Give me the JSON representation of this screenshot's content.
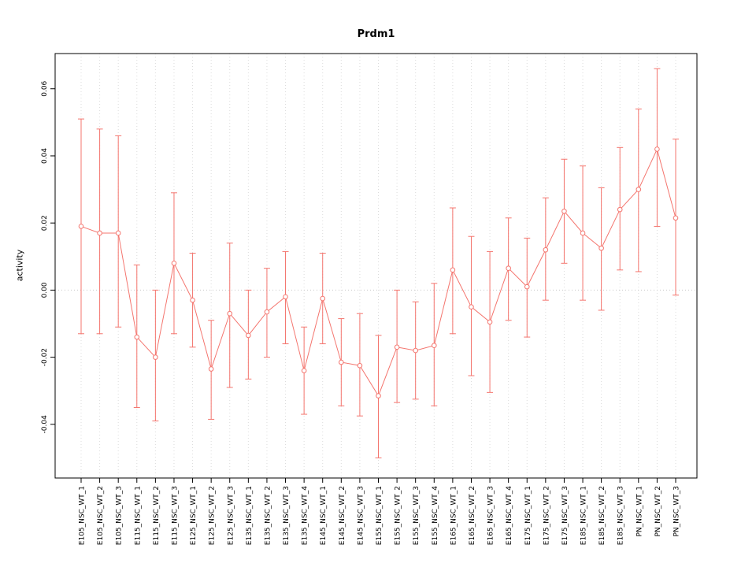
{
  "chart_data": {
    "type": "scatter",
    "title": "Prdm1",
    "ylabel": "activity",
    "xlabel": "",
    "point_style": "open-circle-with-error-bars-connected-by-line",
    "color": "#f4756e",
    "grid_color": "#dcdcdc",
    "zero_line_color": "#c8c8c8",
    "grid": "dotted vertical gridline at each category, dotted horizontal line at y=0",
    "legend": "none",
    "ylim": [
      -0.056,
      0.0705
    ],
    "yticks": [
      -0.04,
      -0.02,
      0,
      0.02,
      0.04,
      0.06
    ],
    "ytick_labels": [
      "-0.04",
      "-0.02",
      "0.00",
      "0.02",
      "0.04",
      "0.06"
    ],
    "categories": [
      "E105_NSC_WT_1",
      "E105_NSC_WT_2",
      "E105_NSC_WT_3",
      "E115_NSC_WT_1",
      "E115_NSC_WT_2",
      "E115_NSC_WT_3",
      "E125_NSC_WT_1",
      "E125_NSC_WT_2",
      "E125_NSC_WT_3",
      "E135_NSC_WT_1",
      "E135_NSC_WT_2",
      "E135_NSC_WT_3",
      "E135_NSC_WT_4",
      "E145_NSC_WT_1",
      "E145_NSC_WT_2",
      "E145_NSC_WT_3",
      "E155_NSC_WT_1",
      "E155_NSC_WT_2",
      "E155_NSC_WT_3",
      "E155_NSC_WT_4",
      "E165_NSC_WT_1",
      "E165_NSC_WT_2",
      "E165_NSC_WT_3",
      "E165_NSC_WT_4",
      "E175_NSC_WT_1",
      "E175_NSC_WT_2",
      "E175_NSC_WT_3",
      "E185_NSC_WT_1",
      "E185_NSC_WT_2",
      "E185_NSC_WT_3",
      "PN_NSC_WT_1",
      "PN_NSC_WT_2",
      "PN_NSC_WT_3"
    ],
    "series": [
      {
        "name": "activity",
        "values": [
          0.019,
          0.017,
          0.017,
          -0.014,
          -0.02,
          0.008,
          -0.003,
          -0.0235,
          -0.007,
          -0.0135,
          -0.0065,
          -0.002,
          -0.024,
          -0.0025,
          -0.0215,
          -0.0225,
          -0.0315,
          -0.017,
          -0.018,
          -0.0165,
          0.006,
          -0.005,
          -0.0095,
          0.0065,
          0.001,
          0.012,
          0.0235,
          0.017,
          0.0125,
          0.024,
          0.03,
          0.042,
          0.0215
        ],
        "lower": [
          -0.013,
          -0.013,
          -0.011,
          -0.035,
          -0.039,
          -0.013,
          -0.017,
          -0.0385,
          -0.029,
          -0.0265,
          -0.02,
          -0.016,
          -0.037,
          -0.016,
          -0.0345,
          -0.0375,
          -0.05,
          -0.0335,
          -0.0325,
          -0.0345,
          -0.013,
          -0.0255,
          -0.0305,
          -0.009,
          -0.014,
          -0.003,
          0.008,
          -0.003,
          -0.006,
          0.006,
          0.0055,
          0.019,
          -0.0015
        ],
        "upper": [
          0.051,
          0.048,
          0.046,
          0.0075,
          0.0,
          0.029,
          0.011,
          -0.009,
          0.014,
          0.0,
          0.0065,
          0.0115,
          -0.011,
          0.011,
          -0.0085,
          -0.007,
          -0.0135,
          0.0,
          -0.0035,
          0.002,
          0.0245,
          0.016,
          0.0115,
          0.0215,
          0.0155,
          0.0275,
          0.039,
          0.037,
          0.0305,
          0.0425,
          0.054,
          0.066,
          0.045
        ]
      }
    ]
  }
}
